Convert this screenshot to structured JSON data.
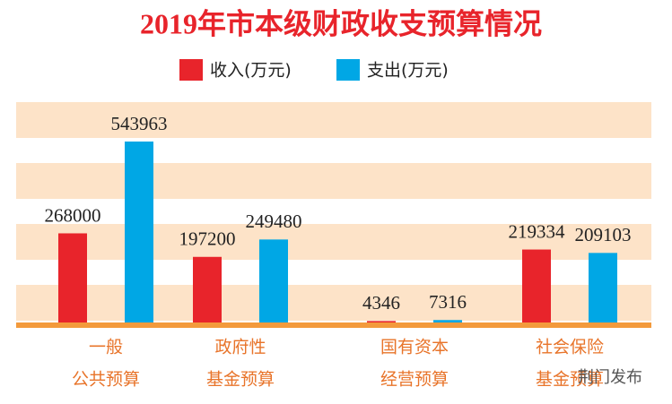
{
  "chart_data": {
    "type": "bar",
    "title": "2019年市本级财政收支预算情况",
    "categories": [
      [
        "一般",
        "公共预算"
      ],
      [
        "政府性",
        "基金预算"
      ],
      [
        "国有资本",
        "经营预算"
      ],
      [
        "社会保险",
        "基金预算"
      ]
    ],
    "series": [
      {
        "name": "收入(万元)",
        "color": "#e8242b",
        "values": [
          268000,
          197200,
          4346,
          219334
        ]
      },
      {
        "name": "支出(万元)",
        "color": "#00a7e5",
        "values": [
          543963,
          249480,
          7316,
          209103
        ]
      }
    ],
    "watermark": "荆门发布"
  }
}
